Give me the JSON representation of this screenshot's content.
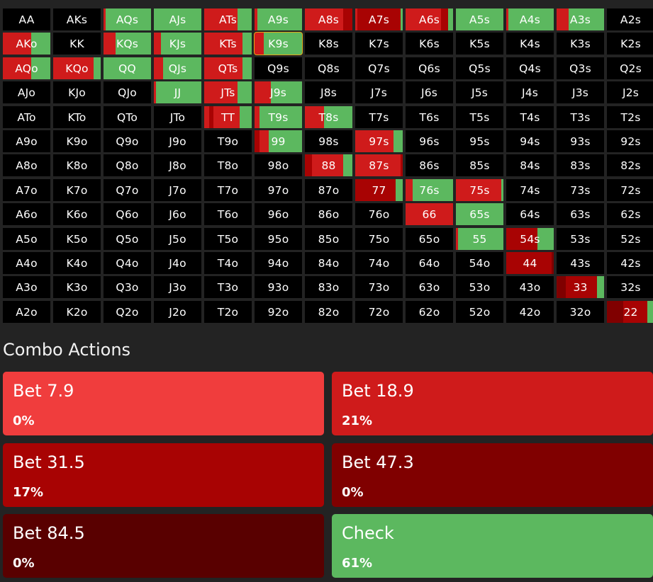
{
  "colors": {
    "bet7_9": "#f03d3d",
    "bet18_9": "#cf1b1b",
    "bet31_5": "#a80303",
    "bet47_3": "#800000",
    "bet84_5": "#590000",
    "check": "#5cb85f",
    "empty": "#000000",
    "selected_outline": "#e2a918"
  },
  "matrix": {
    "rows": [
      [
        {
          "label": "AA",
          "mix": []
        },
        {
          "label": "AKs",
          "mix": []
        },
        {
          "label": "AQs",
          "mix": [
            [
              "bet18_9",
              0.05
            ],
            [
              "check",
              0.95
            ]
          ]
        },
        {
          "label": "AJs",
          "mix": [
            [
              "check",
              1.0
            ]
          ]
        },
        {
          "label": "ATs",
          "mix": [
            [
              "bet18_9",
              0.7
            ],
            [
              "check",
              0.3
            ]
          ]
        },
        {
          "label": "A9s",
          "mix": [
            [
              "bet18_9",
              0.06
            ],
            [
              "check",
              0.94
            ]
          ]
        },
        {
          "label": "A8s",
          "mix": [
            [
              "bet18_9",
              0.8
            ],
            [
              "bet31_5",
              0.2
            ]
          ]
        },
        {
          "label": "A7s",
          "mix": [
            [
              "bet18_9",
              0.05
            ],
            [
              "bet31_5",
              0.9
            ],
            [
              "check",
              0.05
            ]
          ]
        },
        {
          "label": "A6s",
          "mix": [
            [
              "bet18_9",
              0.75
            ],
            [
              "bet31_5",
              0.15
            ],
            [
              "check",
              0.1
            ]
          ]
        },
        {
          "label": "A5s",
          "mix": [
            [
              "check",
              1.0
            ]
          ]
        },
        {
          "label": "A4s",
          "mix": [
            [
              "bet18_9",
              0.05
            ],
            [
              "check",
              0.95
            ]
          ]
        },
        {
          "label": "A3s",
          "mix": [
            [
              "bet18_9",
              0.25
            ],
            [
              "check",
              0.75
            ]
          ]
        },
        {
          "label": "A2s",
          "mix": []
        }
      ],
      [
        {
          "label": "AKo",
          "mix": [
            [
              "bet18_9",
              0.6
            ],
            [
              "check",
              0.4
            ]
          ]
        },
        {
          "label": "KK",
          "mix": []
        },
        {
          "label": "KQs",
          "mix": [
            [
              "bet18_9",
              0.25
            ],
            [
              "check",
              0.75
            ]
          ]
        },
        {
          "label": "KJs",
          "mix": [
            [
              "bet18_9",
              0.15
            ],
            [
              "check",
              0.85
            ]
          ]
        },
        {
          "label": "KTs",
          "mix": [
            [
              "bet18_9",
              0.8
            ],
            [
              "check",
              0.2
            ]
          ]
        },
        {
          "label": "K9s",
          "mix": [
            [
              "bet18_9",
              0.2
            ],
            [
              "check",
              0.8
            ]
          ]
        },
        {
          "label": "K8s",
          "mix": []
        },
        {
          "label": "K7s",
          "mix": []
        },
        {
          "label": "K6s",
          "mix": []
        },
        {
          "label": "K5s",
          "mix": []
        },
        {
          "label": "K4s",
          "mix": []
        },
        {
          "label": "K3s",
          "mix": []
        },
        {
          "label": "K2s",
          "mix": []
        }
      ],
      [
        {
          "label": "AQo",
          "mix": [
            [
              "bet18_9",
              0.6
            ],
            [
              "check",
              0.4
            ]
          ]
        },
        {
          "label": "KQo",
          "mix": [
            [
              "bet18_9",
              0.85
            ],
            [
              "check",
              0.15
            ]
          ]
        },
        {
          "label": "QQ",
          "mix": [
            [
              "check",
              1.0
            ]
          ]
        },
        {
          "label": "QJs",
          "mix": [
            [
              "bet18_9",
              0.2
            ],
            [
              "check",
              0.8
            ]
          ]
        },
        {
          "label": "QTs",
          "mix": [
            [
              "bet18_9",
              0.8
            ],
            [
              "check",
              0.2
            ]
          ]
        },
        {
          "label": "Q9s",
          "mix": []
        },
        {
          "label": "Q8s",
          "mix": []
        },
        {
          "label": "Q7s",
          "mix": []
        },
        {
          "label": "Q6s",
          "mix": []
        },
        {
          "label": "Q5s",
          "mix": []
        },
        {
          "label": "Q4s",
          "mix": []
        },
        {
          "label": "Q3s",
          "mix": []
        },
        {
          "label": "Q2s",
          "mix": []
        }
      ],
      [
        {
          "label": "AJo",
          "mix": []
        },
        {
          "label": "KJo",
          "mix": []
        },
        {
          "label": "QJo",
          "mix": []
        },
        {
          "label": "JJ",
          "mix": [
            [
              "bet18_9",
              0.05
            ],
            [
              "check",
              0.95
            ]
          ]
        },
        {
          "label": "JTs",
          "mix": [
            [
              "bet18_9",
              0.7
            ],
            [
              "check",
              0.3
            ]
          ]
        },
        {
          "label": "J9s",
          "mix": [
            [
              "bet18_9",
              0.35
            ],
            [
              "check",
              0.65
            ]
          ]
        },
        {
          "label": "J8s",
          "mix": []
        },
        {
          "label": "J7s",
          "mix": []
        },
        {
          "label": "J6s",
          "mix": []
        },
        {
          "label": "J5s",
          "mix": []
        },
        {
          "label": "J4s",
          "mix": []
        },
        {
          "label": "J3s",
          "mix": []
        },
        {
          "label": "J2s",
          "mix": []
        }
      ],
      [
        {
          "label": "ATo",
          "mix": []
        },
        {
          "label": "KTo",
          "mix": []
        },
        {
          "label": "QTo",
          "mix": []
        },
        {
          "label": "JTo",
          "mix": []
        },
        {
          "label": "TT",
          "mix": [
            [
              "bet18_9",
              0.1
            ],
            [
              "bet31_5",
              0.1
            ],
            [
              "bet18_9",
              0.55
            ],
            [
              "check",
              0.25
            ]
          ]
        },
        {
          "label": "T9s",
          "mix": [
            [
              "bet18_9",
              0.1
            ],
            [
              "check",
              0.9
            ]
          ]
        },
        {
          "label": "T8s",
          "mix": [
            [
              "bet18_9",
              0.4
            ],
            [
              "check",
              0.6
            ]
          ]
        },
        {
          "label": "T7s",
          "mix": []
        },
        {
          "label": "T6s",
          "mix": []
        },
        {
          "label": "T5s",
          "mix": []
        },
        {
          "label": "T4s",
          "mix": []
        },
        {
          "label": "T3s",
          "mix": []
        },
        {
          "label": "T2s",
          "mix": []
        }
      ],
      [
        {
          "label": "A9o",
          "mix": []
        },
        {
          "label": "K9o",
          "mix": []
        },
        {
          "label": "Q9o",
          "mix": []
        },
        {
          "label": "J9o",
          "mix": []
        },
        {
          "label": "T9o",
          "mix": []
        },
        {
          "label": "99",
          "mix": [
            [
              "bet31_5",
              0.1
            ],
            [
              "bet18_9",
              0.2
            ],
            [
              "check",
              0.7
            ]
          ]
        },
        {
          "label": "98s",
          "mix": []
        },
        {
          "label": "97s",
          "mix": [
            [
              "bet18_9",
              0.8
            ],
            [
              "check",
              0.2
            ]
          ]
        },
        {
          "label": "96s",
          "mix": []
        },
        {
          "label": "95s",
          "mix": []
        },
        {
          "label": "94s",
          "mix": []
        },
        {
          "label": "93s",
          "mix": []
        },
        {
          "label": "92s",
          "mix": []
        }
      ],
      [
        {
          "label": "A8o",
          "mix": []
        },
        {
          "label": "K8o",
          "mix": []
        },
        {
          "label": "Q8o",
          "mix": []
        },
        {
          "label": "J8o",
          "mix": []
        },
        {
          "label": "T8o",
          "mix": []
        },
        {
          "label": "98o",
          "mix": []
        },
        {
          "label": "88",
          "mix": [
            [
              "bet31_5",
              0.15
            ],
            [
              "bet18_9",
              0.65
            ],
            [
              "check",
              0.2
            ]
          ]
        },
        {
          "label": "87s",
          "mix": [
            [
              "bet18_9",
              0.95
            ],
            [
              "bet31_5",
              0.05
            ]
          ]
        },
        {
          "label": "86s",
          "mix": []
        },
        {
          "label": "85s",
          "mix": []
        },
        {
          "label": "84s",
          "mix": []
        },
        {
          "label": "83s",
          "mix": []
        },
        {
          "label": "82s",
          "mix": []
        }
      ],
      [
        {
          "label": "A7o",
          "mix": []
        },
        {
          "label": "K7o",
          "mix": []
        },
        {
          "label": "Q7o",
          "mix": []
        },
        {
          "label": "J7o",
          "mix": []
        },
        {
          "label": "T7o",
          "mix": []
        },
        {
          "label": "97o",
          "mix": []
        },
        {
          "label": "87o",
          "mix": []
        },
        {
          "label": "77",
          "mix": [
            [
              "bet31_5",
              0.85
            ],
            [
              "check",
              0.15
            ]
          ]
        },
        {
          "label": "76s",
          "mix": [
            [
              "bet18_9",
              0.15
            ],
            [
              "check",
              0.85
            ]
          ]
        },
        {
          "label": "75s",
          "mix": [
            [
              "bet18_9",
              0.95
            ],
            [
              "check",
              0.05
            ]
          ]
        },
        {
          "label": "74s",
          "mix": []
        },
        {
          "label": "73s",
          "mix": []
        },
        {
          "label": "72s",
          "mix": []
        }
      ],
      [
        {
          "label": "A6o",
          "mix": []
        },
        {
          "label": "K6o",
          "mix": []
        },
        {
          "label": "Q6o",
          "mix": []
        },
        {
          "label": "J6o",
          "mix": []
        },
        {
          "label": "T6o",
          "mix": []
        },
        {
          "label": "96o",
          "mix": []
        },
        {
          "label": "86o",
          "mix": []
        },
        {
          "label": "76o",
          "mix": []
        },
        {
          "label": "66",
          "mix": [
            [
              "bet18_9",
              1.0
            ]
          ]
        },
        {
          "label": "65s",
          "mix": [
            [
              "check",
              1.0
            ]
          ]
        },
        {
          "label": "64s",
          "mix": []
        },
        {
          "label": "63s",
          "mix": []
        },
        {
          "label": "62s",
          "mix": []
        }
      ],
      [
        {
          "label": "A5o",
          "mix": []
        },
        {
          "label": "K5o",
          "mix": []
        },
        {
          "label": "Q5o",
          "mix": []
        },
        {
          "label": "J5o",
          "mix": []
        },
        {
          "label": "T5o",
          "mix": []
        },
        {
          "label": "95o",
          "mix": []
        },
        {
          "label": "85o",
          "mix": []
        },
        {
          "label": "75o",
          "mix": []
        },
        {
          "label": "65o",
          "mix": []
        },
        {
          "label": "55",
          "mix": [
            [
              "bet18_9",
              0.05
            ],
            [
              "check",
              0.95
            ]
          ]
        },
        {
          "label": "54s",
          "mix": [
            [
              "bet31_5",
              0.65
            ],
            [
              "check",
              0.35
            ]
          ]
        },
        {
          "label": "53s",
          "mix": []
        },
        {
          "label": "52s",
          "mix": []
        }
      ],
      [
        {
          "label": "A4o",
          "mix": []
        },
        {
          "label": "K4o",
          "mix": []
        },
        {
          "label": "Q4o",
          "mix": []
        },
        {
          "label": "J4o",
          "mix": []
        },
        {
          "label": "T4o",
          "mix": []
        },
        {
          "label": "94o",
          "mix": []
        },
        {
          "label": "84o",
          "mix": []
        },
        {
          "label": "74o",
          "mix": []
        },
        {
          "label": "64o",
          "mix": []
        },
        {
          "label": "54o",
          "mix": []
        },
        {
          "label": "44",
          "mix": [
            [
              "bet31_5",
              0.95
            ],
            [
              "bet47_3",
              0.05
            ]
          ]
        },
        {
          "label": "43s",
          "mix": []
        },
        {
          "label": "42s",
          "mix": []
        }
      ],
      [
        {
          "label": "A3o",
          "mix": []
        },
        {
          "label": "K3o",
          "mix": []
        },
        {
          "label": "Q3o",
          "mix": []
        },
        {
          "label": "J3o",
          "mix": []
        },
        {
          "label": "T3o",
          "mix": []
        },
        {
          "label": "93o",
          "mix": []
        },
        {
          "label": "83o",
          "mix": []
        },
        {
          "label": "73o",
          "mix": []
        },
        {
          "label": "63o",
          "mix": []
        },
        {
          "label": "53o",
          "mix": []
        },
        {
          "label": "43o",
          "mix": []
        },
        {
          "label": "33",
          "mix": [
            [
              "bet47_3",
              0.2
            ],
            [
              "bet31_5",
              0.65
            ],
            [
              "check",
              0.15
            ]
          ]
        },
        {
          "label": "32s",
          "mix": []
        }
      ],
      [
        {
          "label": "A2o",
          "mix": []
        },
        {
          "label": "K2o",
          "mix": []
        },
        {
          "label": "Q2o",
          "mix": []
        },
        {
          "label": "J2o",
          "mix": []
        },
        {
          "label": "T2o",
          "mix": []
        },
        {
          "label": "92o",
          "mix": []
        },
        {
          "label": "82o",
          "mix": []
        },
        {
          "label": "72o",
          "mix": []
        },
        {
          "label": "62o",
          "mix": []
        },
        {
          "label": "52o",
          "mix": []
        },
        {
          "label": "42o",
          "mix": []
        },
        {
          "label": "32o",
          "mix": []
        },
        {
          "label": "22",
          "mix": [
            [
              "bet47_3",
              0.35
            ],
            [
              "bet31_5",
              0.5
            ],
            [
              "check",
              0.15
            ]
          ]
        }
      ]
    ]
  },
  "selected_hand": "K9s",
  "combo_actions": {
    "title": "Combo Actions",
    "items": [
      {
        "label": "Bet 7.9",
        "pct": "0%",
        "color_key": "bet7_9"
      },
      {
        "label": "Bet 18.9",
        "pct": "21%",
        "color_key": "bet18_9"
      },
      {
        "label": "Bet 31.5",
        "pct": "17%",
        "color_key": "bet31_5"
      },
      {
        "label": "Bet 47.3",
        "pct": "0%",
        "color_key": "bet47_3"
      },
      {
        "label": "Bet 84.5",
        "pct": "0%",
        "color_key": "bet84_5"
      },
      {
        "label": "Check",
        "pct": "61%",
        "color_key": "check"
      }
    ]
  }
}
